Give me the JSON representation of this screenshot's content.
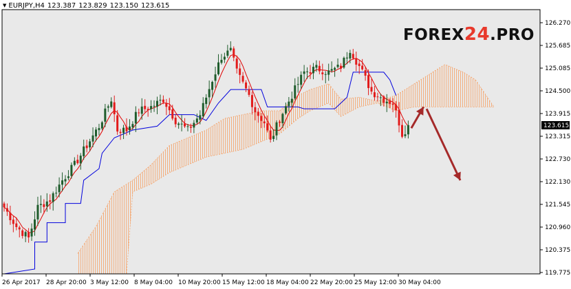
{
  "header": {
    "symbol": "EURJPY,H4",
    "open": "123.387",
    "high": "123.829",
    "low": "123.150",
    "close": "123.615"
  },
  "watermark": {
    "part1": "FOREX",
    "part2": "24",
    "part3": ".PRO"
  },
  "current_price_label": "123.615",
  "colors": {
    "background": "#ffffff",
    "plot_background": "#e9e9e9",
    "bull_candle": "#1f5c2c",
    "bear_candle": "#e21b1b",
    "tenkan": "#e00000",
    "kijun": "#0000dd",
    "cloud": "#f5a36a",
    "forecast_arrow": "#a52a2a",
    "price_tag": "#000000"
  },
  "chart_data": {
    "type": "candlestick",
    "symbol": "EURJPY",
    "timeframe": "H4",
    "y_ticks": [
      "126.270",
      "125.685",
      "125.085",
      "124.500",
      "123.915",
      "123.315",
      "122.730",
      "122.130",
      "121.545",
      "120.960",
      "120.375",
      "119.775"
    ],
    "x_ticks": [
      "26 Apr 2017",
      "28 Apr 20:00",
      "3 May 12:00",
      "8 May 04:00",
      "10 May 20:00",
      "15 May 12:00",
      "18 May 04:00",
      "22 May 20:00",
      "25 May 12:00",
      "30 May 04:00"
    ],
    "ylim": [
      119.775,
      126.62
    ],
    "anchors": [
      {
        "i": 0,
        "p": 121.5
      },
      {
        "i": 4,
        "p": 121.0
      },
      {
        "i": 8,
        "p": 120.7
      },
      {
        "i": 11,
        "p": 121.5
      },
      {
        "i": 15,
        "p": 121.7
      },
      {
        "i": 19,
        "p": 122.2
      },
      {
        "i": 23,
        "p": 122.6
      },
      {
        "i": 27,
        "p": 123.1
      },
      {
        "i": 31,
        "p": 123.6
      },
      {
        "i": 35,
        "p": 124.3
      },
      {
        "i": 37,
        "p": 123.5
      },
      {
        "i": 40,
        "p": 123.5
      },
      {
        "i": 44,
        "p": 124.0
      },
      {
        "i": 48,
        "p": 124.1
      },
      {
        "i": 52,
        "p": 124.3
      },
      {
        "i": 56,
        "p": 123.75
      },
      {
        "i": 60,
        "p": 123.5
      },
      {
        "i": 64,
        "p": 123.9
      },
      {
        "i": 68,
        "p": 124.8
      },
      {
        "i": 71,
        "p": 125.4
      },
      {
        "i": 74,
        "p": 125.55
      },
      {
        "i": 76,
        "p": 125.0
      },
      {
        "i": 80,
        "p": 124.4
      },
      {
        "i": 82,
        "p": 124.0
      },
      {
        "i": 85,
        "p": 123.7
      },
      {
        "i": 87,
        "p": 123.2
      },
      {
        "i": 90,
        "p": 123.8
      },
      {
        "i": 94,
        "p": 124.4
      },
      {
        "i": 98,
        "p": 125.0
      },
      {
        "i": 102,
        "p": 125.1
      },
      {
        "i": 106,
        "p": 125.0
      },
      {
        "i": 110,
        "p": 125.15
      },
      {
        "i": 113,
        "p": 125.6
      },
      {
        "i": 117,
        "p": 125.0
      },
      {
        "i": 120,
        "p": 124.5
      },
      {
        "i": 124,
        "p": 124.3
      },
      {
        "i": 127,
        "p": 124.2
      },
      {
        "i": 129,
        "p": 123.7
      },
      {
        "i": 130,
        "p": 123.4
      },
      {
        "i": 132,
        "p": 123.6
      }
    ],
    "kijun": [
      {
        "i": 0,
        "p": 119.775
      },
      {
        "i": 10,
        "p": 119.9
      },
      {
        "i": 10,
        "p": 120.6
      },
      {
        "i": 14,
        "p": 120.6
      },
      {
        "i": 14,
        "p": 121.1
      },
      {
        "i": 20,
        "p": 121.1
      },
      {
        "i": 20,
        "p": 121.6
      },
      {
        "i": 25,
        "p": 121.6
      },
      {
        "i": 26,
        "p": 122.2
      },
      {
        "i": 31,
        "p": 122.5
      },
      {
        "i": 32,
        "p": 122.9
      },
      {
        "i": 36,
        "p": 123.3
      },
      {
        "i": 42,
        "p": 123.5
      },
      {
        "i": 50,
        "p": 123.6
      },
      {
        "i": 54,
        "p": 123.9
      },
      {
        "i": 62,
        "p": 123.9
      },
      {
        "i": 66,
        "p": 123.75
      },
      {
        "i": 70,
        "p": 124.2
      },
      {
        "i": 74,
        "p": 124.55
      },
      {
        "i": 84,
        "p": 124.55
      },
      {
        "i": 86,
        "p": 124.1
      },
      {
        "i": 96,
        "p": 124.1
      },
      {
        "i": 98,
        "p": 124.05
      },
      {
        "i": 108,
        "p": 124.05
      },
      {
        "i": 112,
        "p": 124.35
      },
      {
        "i": 114,
        "p": 125.0
      },
      {
        "i": 124,
        "p": 125.0
      },
      {
        "i": 126,
        "p": 124.8
      },
      {
        "i": 128,
        "p": 124.4
      }
    ],
    "cloud": [
      {
        "i": 24,
        "a": 120.3,
        "b": 119.775
      },
      {
        "i": 30,
        "a": 121.0,
        "b": 119.775
      },
      {
        "i": 36,
        "a": 121.9,
        "b": 119.775
      },
      {
        "i": 40,
        "a": 122.1,
        "b": 119.775
      },
      {
        "i": 42,
        "a": 122.2,
        "b": 121.9
      },
      {
        "i": 48,
        "a": 122.6,
        "b": 122.1
      },
      {
        "i": 54,
        "a": 123.1,
        "b": 122.4
      },
      {
        "i": 60,
        "a": 123.3,
        "b": 122.6
      },
      {
        "i": 66,
        "a": 123.5,
        "b": 122.8
      },
      {
        "i": 72,
        "a": 123.8,
        "b": 122.9
      },
      {
        "i": 78,
        "a": 123.9,
        "b": 123.0
      },
      {
        "i": 84,
        "a": 124.0,
        "b": 123.2
      },
      {
        "i": 90,
        "a": 124.0,
        "b": 123.4
      },
      {
        "i": 96,
        "a": 124.4,
        "b": 123.8
      },
      {
        "i": 100,
        "a": 124.55,
        "b": 124.0
      },
      {
        "i": 106,
        "a": 124.7,
        "b": 124.2
      },
      {
        "i": 110,
        "a": 124.3,
        "b": 123.85
      },
      {
        "i": 116,
        "a": 124.35,
        "b": 124.1
      },
      {
        "i": 122,
        "a": 124.25,
        "b": 124.2
      },
      {
        "i": 128,
        "a": 124.4,
        "b": 124.0
      },
      {
        "i": 134,
        "a": 124.7,
        "b": 124.1
      },
      {
        "i": 140,
        "a": 125.0,
        "b": 124.1
      },
      {
        "i": 144,
        "a": 125.2,
        "b": 124.1
      },
      {
        "i": 150,
        "a": 125.0,
        "b": 124.1
      },
      {
        "i": 154,
        "a": 124.8,
        "b": 124.1
      },
      {
        "i": 160,
        "a": 124.1,
        "b": 124.1
      }
    ],
    "forecast_arrows": [
      {
        "from": {
          "i": 133,
          "p": 123.55
        },
        "to": {
          "i": 137,
          "p": 124.1
        }
      },
      {
        "from": {
          "i": 138,
          "p": 124.05
        },
        "to": {
          "i": 149,
          "p": 122.2
        }
      }
    ]
  }
}
